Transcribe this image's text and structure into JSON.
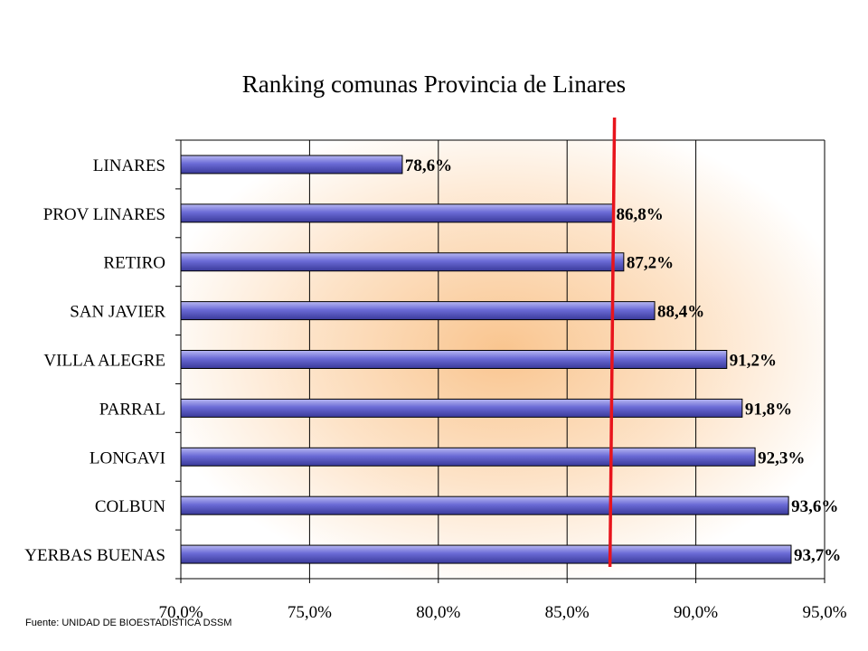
{
  "chart_data": {
    "type": "bar",
    "orientation": "horizontal",
    "title": "Ranking comunas Provincia de Linares",
    "categories": [
      "LINARES",
      "PROV LINARES",
      "RETIRO",
      "SAN JAVIER",
      "VILLA ALEGRE",
      "PARRAL",
      "LONGAVI",
      "COLBUN",
      "YERBAS BUENAS"
    ],
    "values": [
      78.6,
      86.8,
      87.2,
      88.4,
      91.2,
      91.8,
      92.3,
      93.6,
      93.7
    ],
    "value_labels": [
      "78,6%",
      "86,8%",
      "87,2%",
      "88,4%",
      "91,2%",
      "91,8%",
      "92,3%",
      "93,6%",
      "93,7%"
    ],
    "xlim": [
      70,
      95
    ],
    "x_ticks": [
      70,
      75,
      80,
      85,
      90,
      95
    ],
    "x_tick_labels": [
      "70,0%",
      "75,0%",
      "80,0%",
      "85,0%",
      "90,0%",
      "95,0%"
    ],
    "reference_line": {
      "value": 86.7,
      "color": "#e8141c"
    },
    "bar_color": "#6b6bd6",
    "grid": true,
    "legend": "none"
  },
  "source_note": "Fuente: UNIDAD DE BIOESTADISTICA  DSSM"
}
